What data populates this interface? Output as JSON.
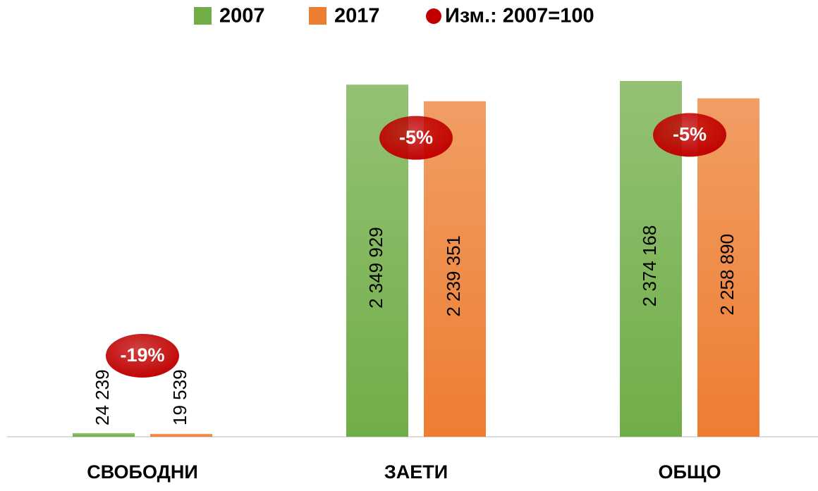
{
  "chart_data": {
    "type": "bar",
    "categories": [
      "СВОБОДНИ",
      "ЗАЕТИ",
      "ОБЩО"
    ],
    "series": [
      {
        "name": "2007",
        "color": "#70ad47",
        "values": [
          24239,
          2349929,
          2374168
        ],
        "value_labels": [
          "24 239",
          "2 349 929",
          "2 374 168"
        ]
      },
      {
        "name": "2017",
        "color": "#ed7d31",
        "values": [
          19539,
          2239351,
          2258890
        ],
        "value_labels": [
          "19 539",
          "2 239 351",
          "2 258 890"
        ]
      }
    ],
    "change": {
      "name": "Изм.: 2007=100",
      "color": "#c00000",
      "values": [
        -19,
        -5,
        -5
      ],
      "value_labels": [
        "-19%",
        "-5%",
        "-5%"
      ]
    },
    "legend": "top"
  }
}
